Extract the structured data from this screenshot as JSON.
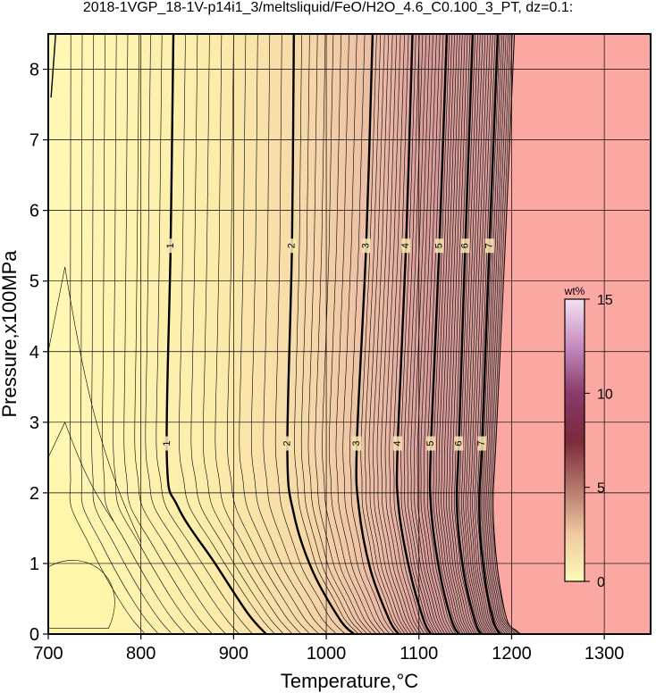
{
  "chart_data": {
    "type": "contour",
    "title": "2018-1VGP_18-1V-p14i1_3/meltsliquid/FeO/H2O_4.6_C0.100_3_PT, dz=0.1:",
    "xlabel": "Temperature,°C",
    "ylabel": "Pressure,x100MPa",
    "xlim": [
      700,
      1350
    ],
    "ylim": [
      0,
      8.5
    ],
    "xticks": [
      700,
      800,
      900,
      1000,
      1100,
      1200,
      1300
    ],
    "yticks": [
      0,
      1,
      2,
      3,
      4,
      5,
      6,
      7,
      8
    ],
    "grid": true,
    "contour_interval": 0.1,
    "labeled_contours": [
      {
        "value": "1",
        "points": [
          [
            835,
            8.5
          ],
          [
            832,
            5.5
          ],
          [
            828,
            2.5
          ],
          [
            840,
            1.8
          ],
          [
            880,
            1.0
          ],
          [
            915,
            0.3
          ],
          [
            935,
            0
          ]
        ]
      },
      {
        "value": "2",
        "points": [
          [
            965,
            8.5
          ],
          [
            963,
            5.5
          ],
          [
            958,
            2.6
          ],
          [
            965,
            1.7
          ],
          [
            985,
            0.9
          ],
          [
            1015,
            0.2
          ],
          [
            1030,
            0
          ]
        ]
      },
      {
        "value": "3",
        "points": [
          [
            1050,
            8.5
          ],
          [
            1043,
            5.5
          ],
          [
            1033,
            2.7
          ],
          [
            1035,
            1.8
          ],
          [
            1048,
            0.9
          ],
          [
            1068,
            0.2
          ],
          [
            1078,
            0
          ]
        ]
      },
      {
        "value": "4",
        "points": [
          [
            1093,
            8.5
          ],
          [
            1086,
            5.5
          ],
          [
            1077,
            2.7
          ],
          [
            1078,
            1.8
          ],
          [
            1090,
            0.9
          ],
          [
            1105,
            0.2
          ],
          [
            1113,
            0
          ]
        ]
      },
      {
        "value": "5",
        "points": [
          [
            1130,
            8.5
          ],
          [
            1122,
            5.5
          ],
          [
            1113,
            2.7
          ],
          [
            1113,
            1.8
          ],
          [
            1122,
            0.9
          ],
          [
            1135,
            0.2
          ],
          [
            1143,
            0
          ]
        ]
      },
      {
        "value": "6",
        "points": [
          [
            1158,
            8.5
          ],
          [
            1150,
            5.5
          ],
          [
            1143,
            2.7
          ],
          [
            1141,
            1.8
          ],
          [
            1148,
            0.9
          ],
          [
            1160,
            0.2
          ],
          [
            1167,
            0
          ]
        ]
      },
      {
        "value": "7",
        "points": [
          [
            1185,
            8.5
          ],
          [
            1176,
            5.5
          ],
          [
            1168,
            2.7
          ],
          [
            1165,
            1.8
          ],
          [
            1170,
            0.9
          ],
          [
            1180,
            0.2
          ],
          [
            1188,
            0
          ]
        ]
      }
    ],
    "liquidus_boundary": [
      [
        1203,
        8.5
      ],
      [
        1193,
        5.5
      ],
      [
        1183,
        2.7
      ],
      [
        1180,
        1.8
      ],
      [
        1185,
        0.9
      ],
      [
        1195,
        0.2
      ],
      [
        1205,
        0.05
      ],
      [
        1210,
        0
      ]
    ],
    "region_colors": {
      "low": "#fff8b8",
      "high": "#f0c4b4",
      "above_liquidus": "#fba8a3",
      "bottom_left": "#fff5a8"
    },
    "colorbar": {
      "title": "wt%",
      "min": 0,
      "max": 15,
      "ticks": [
        0,
        5,
        10,
        15
      ],
      "colors": [
        "#fcfbb8",
        "#f0c9a0",
        "#b4756a",
        "#7a2a3a",
        "#8a3a6a",
        "#c58cc0",
        "#f3e0f0"
      ]
    }
  }
}
